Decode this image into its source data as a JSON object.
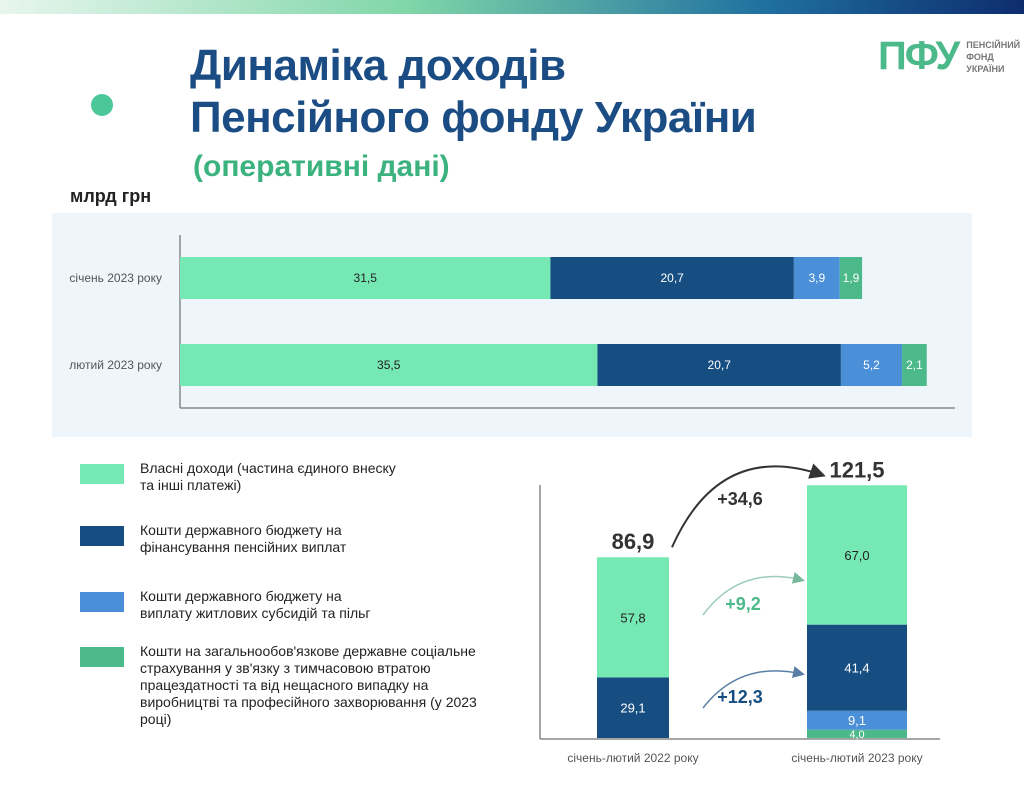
{
  "header": {
    "title_line1": "Динаміка доходів",
    "title_line2": "Пенсійного фонду України",
    "subtitle": "(оперативні дані)",
    "logo_mark": "ПФУ",
    "logo_text": [
      "ПЕНСІЙНИЙ",
      "ФОНД",
      "УКРАЇНИ"
    ]
  },
  "colors": {
    "own": "#76e8b4",
    "state_pension": "#174e82",
    "subsidies": "#4a8fd8",
    "insurance": "#4cb98a"
  },
  "legend": [
    {
      "label": "Власні доходи (частина єдиного внеску та інші платежі)",
      "color": "#76e8b4"
    },
    {
      "label": "Кошти державного бюджету на фінансування пенсійних виплат",
      "color": "#174e82"
    },
    {
      "label": "Кошти державного бюджету на виплату житлових субсидій та пільг",
      "color": "#4a8fd8"
    },
    {
      "label": "Кошти на загальнообов'язкове державне соціальне страхування у зв'язку з тимчасовою втратою працездатності та від нещасного випадку на виробництві та професійного захворювання (у 2023 році)",
      "color": "#4cb98a"
    }
  ],
  "chart_data": [
    {
      "type": "bar",
      "orientation": "horizontal",
      "stacked": true,
      "ylabel": "млрд грн",
      "categories": [
        "січень 2023 року",
        "лютий 2023 року"
      ],
      "series": [
        {
          "name": "Власні доходи",
          "values": [
            31.5,
            35.5
          ],
          "labels": [
            "31,5",
            "35,5"
          ]
        },
        {
          "name": "Кошти держбюджету на пенсії",
          "values": [
            20.7,
            20.7
          ],
          "labels": [
            "20,7",
            "20,7"
          ]
        },
        {
          "name": "Субсидії та пільги",
          "values": [
            3.9,
            5.2
          ],
          "labels": [
            "3,9",
            "5,2"
          ]
        },
        {
          "name": "Соцстрахування",
          "values": [
            1.9,
            2.1
          ],
          "labels": [
            "1,9",
            "2,1"
          ]
        }
      ]
    },
    {
      "type": "bar",
      "orientation": "vertical",
      "stacked": true,
      "categories": [
        "січень-лютий 2022 року",
        "січень-лютий 2023 року"
      ],
      "series": [
        {
          "name": "Соцстрахування",
          "values": [
            0,
            4.0
          ],
          "labels": [
            "",
            "4,0"
          ]
        },
        {
          "name": "Субсидії та пільги",
          "values": [
            0,
            9.1
          ],
          "labels": [
            "",
            "9,1"
          ]
        },
        {
          "name": "Кошти держбюджету на пенсії",
          "values": [
            29.1,
            41.4
          ],
          "labels": [
            "29,1",
            "41,4"
          ]
        },
        {
          "name": "Власні доходи",
          "values": [
            57.8,
            67.0
          ],
          "labels": [
            "57,8",
            "67,0"
          ]
        }
      ],
      "totals": [
        "86,9",
        "121,5"
      ],
      "annotations": [
        {
          "text": "+34,6",
          "color": "#333333"
        },
        {
          "text": "+9,2",
          "color": "#4cb98a"
        },
        {
          "text": "+12,3",
          "color": "#174e82"
        }
      ]
    }
  ]
}
